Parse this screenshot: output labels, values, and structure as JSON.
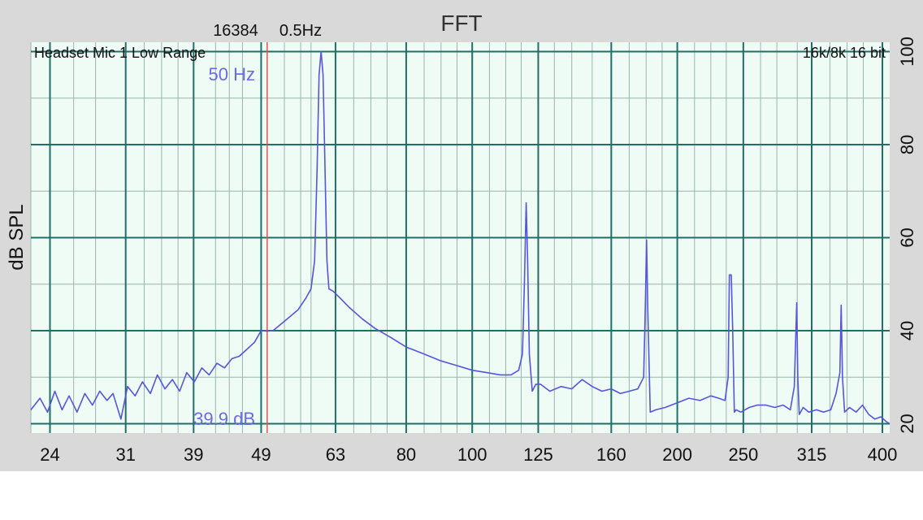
{
  "header": {
    "title": "FFT",
    "fft_size": "16384",
    "resolution": "0.5Hz",
    "input_label": "Headset Mic 1 Low Range",
    "format_label": "16k/8k 16 bit"
  },
  "marker": {
    "freq_label": "50 Hz",
    "level_label": "39.9 dB",
    "freq": 50,
    "color": "#e05555"
  },
  "colors": {
    "background": "#d9d9d9",
    "plot_bg": "#eefcf5",
    "major_grid": "#1f6f66",
    "minor_grid": "#9bb5ae",
    "trace": "#5555dd"
  },
  "chart_data": {
    "type": "line",
    "title": "FFT",
    "xlabel": "",
    "ylabel": "dB SPL",
    "x_scale": "log",
    "xlim": [
      22.5,
      410
    ],
    "ylim": [
      18,
      102
    ],
    "x_ticks": [
      "24",
      "31",
      "39",
      "49",
      "63",
      "80",
      "100",
      "125",
      "160",
      "200",
      "250",
      "315",
      "400"
    ],
    "y_ticks": [
      "20",
      "40",
      "60",
      "80",
      "100"
    ],
    "grid": true,
    "series": [
      {
        "x": [
          22.5,
          23.2,
          23.8,
          24.4,
          25.0,
          25.6,
          26.3,
          27.0,
          27.7,
          28.4,
          29.1,
          29.7,
          30.5,
          31.2,
          32.0,
          32.8,
          33.7,
          34.5,
          35.4,
          36.3,
          37.2,
          38.1,
          39.1,
          40.1,
          41.1,
          42.2,
          43.3,
          44.4,
          45.5,
          46.7,
          47.9,
          49.0,
          50.0,
          51.0,
          52.5,
          54.0,
          55.5,
          57.0,
          58.0,
          58.7,
          59.2,
          59.6,
          60.0,
          60.4,
          60.8,
          61.2,
          61.6,
          62.5,
          64.0,
          66.0,
          69.0,
          72.0,
          76.0,
          80.0,
          85.0,
          90.0,
          95.0,
          100.0,
          105.0,
          110.0,
          114.0,
          117.0,
          118.5,
          119.3,
          120.0,
          120.6,
          121.3,
          122.5,
          124.0,
          126.0,
          130.0,
          135.0,
          140.0,
          145.0,
          150.0,
          155.0,
          160.0,
          165.0,
          170.0,
          175.0,
          178.5,
          179.5,
          180.3,
          181.0,
          182.5,
          186.0,
          192.0,
          200.0,
          208.0,
          216.0,
          224.0,
          230.0,
          235.0,
          237.5,
          238.5,
          240.0,
          241.2,
          242.5,
          244.0,
          248.0,
          255.0,
          262.0,
          270.0,
          278.0,
          286.0,
          293.0,
          297.0,
          299.5,
          300.5,
          302.0,
          306.0,
          312.0,
          320.0,
          328.0,
          336.0,
          342.0,
          346.5,
          348.0,
          349.5,
          352.0,
          358.0,
          366.0,
          374.0,
          382.0,
          390.0,
          398.0,
          405.0,
          410.0
        ],
        "y": [
          23.0,
          25.5,
          22.5,
          27.0,
          23.0,
          26.0,
          22.5,
          26.5,
          24.0,
          27.0,
          25.0,
          26.5,
          21.0,
          28.0,
          26.0,
          29.0,
          26.5,
          30.5,
          27.5,
          29.5,
          27.0,
          31.0,
          29.0,
          32.0,
          30.5,
          33.0,
          32.0,
          34.0,
          34.5,
          36.0,
          37.5,
          40.0,
          39.9,
          40.0,
          41.5,
          43.0,
          44.5,
          47.0,
          49.0,
          55.0,
          75.0,
          95.0,
          100.0,
          95.0,
          75.0,
          55.0,
          49.0,
          48.5,
          47.0,
          45.0,
          42.5,
          40.5,
          38.5,
          36.5,
          35.0,
          33.5,
          32.5,
          31.5,
          31.0,
          30.5,
          30.5,
          31.5,
          35.0,
          50.0,
          67.5,
          55.0,
          35.0,
          27.0,
          28.5,
          28.5,
          27.0,
          28.0,
          27.5,
          29.5,
          28.0,
          27.0,
          27.5,
          26.5,
          27.0,
          27.5,
          30.0,
          45.0,
          59.5,
          45.0,
          22.5,
          23.0,
          23.5,
          24.5,
          25.5,
          25.0,
          26.0,
          25.5,
          25.0,
          30.0,
          52.0,
          52.0,
          40.0,
          22.5,
          23.0,
          22.5,
          23.5,
          24.0,
          24.0,
          23.5,
          24.0,
          23.0,
          28.0,
          46.0,
          30.0,
          22.0,
          23.5,
          22.5,
          23.0,
          22.5,
          23.0,
          26.5,
          31.0,
          45.5,
          30.0,
          22.5,
          23.5,
          22.5,
          24.0,
          22.0,
          21.0,
          21.5,
          20.5,
          20.0
        ]
      }
    ]
  }
}
